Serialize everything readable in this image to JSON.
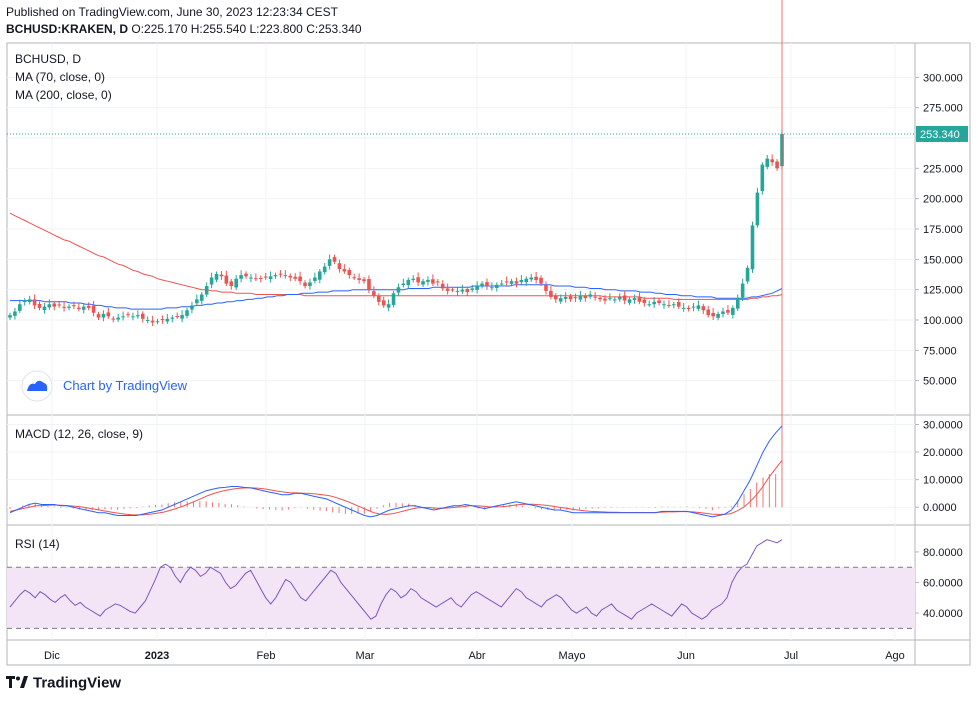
{
  "header": {
    "published": "Published on TradingView.com, June 30, 2023 12:23:34 CEST",
    "symbol": "BCHUSD:KRAKEN, D",
    "open": "O:225.170",
    "high": "H:255.540",
    "low": "L:223.800",
    "close": "C:253.340"
  },
  "panes": {
    "main": {
      "title": "BCHUSD, D",
      "legend": [
        "MA (70, close, 0)",
        "MA (200, close, 0)"
      ]
    },
    "macd": {
      "title": "MACD (12, 26, close, 9)"
    },
    "rsi": {
      "title": "RSI (14)"
    }
  },
  "watermark": "Chart by TradingView",
  "footer_logo": "TradingView",
  "colors": {
    "up": "#26a69a",
    "down": "#ef5350",
    "ma70": "#2962ff",
    "ma200": "#ef5350",
    "macd": "#2962ff",
    "signal": "#ef5350",
    "rsi": "#7e57c2",
    "rsi_band": "#f3e5f5",
    "price_tag": "#26a69a"
  },
  "chart_data": [
    {
      "type": "candlestick",
      "title": "BCHUSD, D",
      "ylim": [
        25,
        325
      ],
      "y_ticks": [
        "300.000",
        "275.000",
        "250.000",
        "225.000",
        "200.000",
        "175.000",
        "150.000",
        "125.000",
        "100.000",
        "75.000",
        "50.000"
      ],
      "x_ticks": [
        "Dic",
        "2023",
        "Feb",
        "Mar",
        "Abr",
        "Mayo",
        "Jun",
        "Jul",
        "Ago"
      ],
      "last_price_label": "253.340",
      "closes": [
        104,
        107,
        113,
        116,
        117,
        112,
        110,
        111,
        113,
        111,
        112,
        110,
        111,
        112,
        109,
        111,
        110,
        106,
        102,
        105,
        103,
        101,
        102,
        103,
        104,
        103,
        104,
        101,
        100,
        98,
        99,
        100,
        101,
        102,
        103,
        104,
        108,
        112,
        117,
        121,
        128,
        135,
        138,
        136,
        130,
        128,
        134,
        137,
        136,
        135,
        134,
        134,
        135,
        136,
        137,
        138,
        137,
        135,
        134,
        132,
        128,
        131,
        135,
        140,
        144,
        150,
        148,
        142,
        140,
        137,
        135,
        133,
        132,
        125,
        120,
        115,
        112,
        113,
        122,
        127,
        130,
        133,
        134,
        131,
        132,
        133,
        130,
        131,
        126,
        124,
        125,
        124,
        125,
        123,
        126,
        128,
        130,
        128,
        127,
        129,
        130,
        131,
        132,
        130,
        133,
        134,
        135,
        133,
        130,
        124,
        119,
        117,
        118,
        119,
        117,
        118,
        120,
        118,
        121,
        119,
        117,
        116,
        118,
        117,
        119,
        116,
        117,
        118,
        115,
        114,
        113,
        115,
        114,
        113,
        112,
        113,
        111,
        110,
        109,
        111,
        112,
        108,
        104,
        103,
        105,
        107,
        106,
        110,
        118,
        130,
        143,
        178,
        205,
        228,
        233,
        230,
        225,
        253.34
      ],
      "series": [
        {
          "name": "MA (70, close, 0)",
          "values": [
            116,
            116,
            116,
            116,
            116,
            116,
            116,
            115,
            115,
            115,
            115,
            115,
            114,
            114,
            114,
            113,
            113,
            112,
            112,
            111,
            111,
            110,
            110,
            110,
            109,
            109,
            109,
            109,
            109,
            109,
            109,
            110,
            110,
            110,
            111,
            111,
            111,
            112,
            112,
            113,
            113,
            114,
            114,
            115,
            115,
            116,
            116,
            117,
            117,
            118,
            118,
            119,
            119,
            120,
            120,
            121,
            121,
            121,
            122,
            122,
            122,
            123,
            123,
            123,
            124,
            124,
            124,
            124,
            125,
            125,
            125,
            125,
            125,
            125,
            125,
            125,
            125,
            125,
            125,
            126,
            126,
            126,
            126,
            126,
            127,
            127,
            127,
            127,
            127,
            127,
            127,
            127,
            128,
            128,
            128,
            128,
            128,
            128,
            128,
            128,
            129,
            129,
            129,
            129,
            129,
            129,
            129,
            129,
            128,
            128,
            128,
            128,
            127,
            127,
            127,
            126,
            126,
            126,
            125,
            125,
            125,
            124,
            124,
            124,
            124,
            123,
            123,
            123,
            122,
            122,
            121,
            121,
            121,
            120,
            120,
            120,
            119,
            119,
            119,
            119,
            118,
            118,
            118,
            118,
            118,
            118,
            118,
            119,
            119,
            120,
            121,
            122,
            124,
            126
          ]
        },
        {
          "name": "MA (200, close, 0)",
          "values": [
            188,
            186,
            184,
            182,
            180,
            178,
            176,
            174,
            172,
            170,
            168,
            166,
            165,
            163,
            161,
            159,
            157,
            155,
            153,
            152,
            150,
            148,
            146,
            145,
            143,
            141,
            140,
            138,
            137,
            136,
            134,
            133,
            132,
            131,
            130,
            129,
            128,
            127,
            126,
            125,
            125,
            124,
            124,
            123,
            123,
            123,
            122,
            122,
            122,
            122,
            121,
            121,
            121,
            121,
            121,
            121,
            121,
            121,
            121,
            121,
            120,
            120,
            120,
            120,
            120,
            120,
            120,
            120,
            120,
            120,
            120,
            120,
            120,
            120,
            120,
            120,
            120,
            120,
            120,
            120,
            120,
            120,
            120,
            120,
            120,
            120,
            120,
            120,
            120,
            120,
            120,
            120,
            120,
            120,
            120,
            120,
            120,
            120,
            120,
            120,
            120,
            120,
            120,
            120,
            120,
            120,
            120,
            120,
            120,
            120,
            120,
            120,
            120,
            120,
            120,
            120,
            120,
            120,
            120,
            120,
            120,
            119,
            119,
            119,
            119,
            119,
            119,
            119,
            119,
            118,
            118,
            118,
            118,
            118,
            118,
            117,
            117,
            117,
            117,
            117,
            117,
            117,
            117,
            117,
            117,
            117,
            117,
            117,
            117,
            117,
            117,
            118,
            118,
            119,
            119,
            120,
            120,
            121
          ]
        }
      ]
    },
    {
      "type": "line",
      "title": "MACD (12, 26, close, 9)",
      "ylim": [
        -5,
        32
      ],
      "y_ticks": [
        "30.0000",
        "20.0000",
        "10.0000",
        "0.0000"
      ],
      "series": [
        {
          "name": "MACD",
          "values": [
            -2,
            -1,
            0,
            1,
            1.5,
            1,
            1,
            1,
            0.5,
            0.5,
            0,
            -0.5,
            -1,
            -1.5,
            -2,
            -2,
            -2.5,
            -3,
            -3,
            -3,
            -3,
            -2.5,
            -2,
            -1.5,
            -1,
            0,
            1,
            2,
            3,
            4,
            5,
            6,
            6.5,
            7,
            7.2,
            7.5,
            7.5,
            7.2,
            7,
            6.5,
            6,
            5.5,
            5,
            4.5,
            4.5,
            5,
            5,
            4.5,
            4,
            3.5,
            3,
            2,
            1,
            0,
            -1,
            -2,
            -3,
            -3.5,
            -3,
            -2,
            -1,
            -0.5,
            0,
            0.5,
            0.5,
            0,
            -0.5,
            -1,
            -0.5,
            0,
            0.5,
            0.5,
            1,
            0.5,
            0,
            -0.5,
            0,
            0.5,
            1,
            1.5,
            2,
            1.5,
            1,
            0.5,
            0,
            -0.5,
            -1,
            -1,
            -1.5,
            -2,
            -2,
            -2,
            -2,
            -2,
            -2,
            -2,
            -2,
            -2,
            -2,
            -2,
            -2,
            -2,
            -2,
            -1.5,
            -1.5,
            -1.5,
            -1.5,
            -1.5,
            -2,
            -2.5,
            -3,
            -3.5,
            -3,
            -2.5,
            -1,
            2,
            6,
            10,
            15,
            20,
            24,
            27,
            29.5
          ]
        },
        {
          "name": "Signal",
          "values": [
            -1.5,
            -1,
            -0.5,
            0,
            0.5,
            0.6,
            0.7,
            0.8,
            0.7,
            0.6,
            0.4,
            0.2,
            -0.2,
            -0.6,
            -1,
            -1.4,
            -1.8,
            -2.2,
            -2.5,
            -2.7,
            -2.8,
            -2.7,
            -2.5,
            -2.2,
            -1.8,
            -1.2,
            -0.5,
            0.3,
            1.2,
            2.2,
            3.2,
            4.2,
            5,
            5.7,
            6.2,
            6.6,
            6.9,
            7,
            7,
            6.9,
            6.6,
            6.2,
            5.8,
            5.5,
            5.2,
            5.2,
            5.1,
            5,
            4.8,
            4.5,
            4.2,
            3.6,
            2.8,
            2,
            1,
            0,
            -1,
            -2,
            -2.5,
            -2.6,
            -2.3,
            -1.8,
            -1.2,
            -0.6,
            -0.2,
            -0.1,
            -0.2,
            -0.4,
            -0.4,
            -0.2,
            0,
            0.2,
            0.5,
            0.5,
            0.4,
            0.2,
            0.1,
            0.2,
            0.4,
            0.7,
            1,
            1.1,
            1.1,
            0.9,
            0.7,
            0.4,
            0,
            -0.3,
            -0.7,
            -1,
            -1.3,
            -1.5,
            -1.6,
            -1.7,
            -1.8,
            -1.8,
            -1.9,
            -1.9,
            -1.9,
            -1.9,
            -1.9,
            -1.9,
            -1.8,
            -1.7,
            -1.7,
            -1.6,
            -1.6,
            -1.7,
            -1.9,
            -2.2,
            -2.5,
            -2.6,
            -2.6,
            -2.3,
            -1.3,
            0,
            2,
            4.5,
            7.5,
            11,
            14,
            17
          ]
        }
      ]
    },
    {
      "type": "line",
      "title": "RSI (14)",
      "ylim": [
        25,
        95
      ],
      "y_ticks": [
        "80.0000",
        "60.0000",
        "40.0000"
      ],
      "bands": [
        70,
        30
      ],
      "series": [
        {
          "name": "RSI",
          "values": [
            44,
            48,
            52,
            55,
            53,
            50,
            54,
            52,
            49,
            47,
            50,
            52,
            48,
            45,
            47,
            44,
            42,
            40,
            38,
            42,
            44,
            46,
            45,
            43,
            41,
            40,
            44,
            48,
            55,
            62,
            70,
            72,
            70,
            64,
            60,
            66,
            70,
            68,
            64,
            66,
            70,
            68,
            66,
            60,
            56,
            58,
            62,
            66,
            68,
            62,
            56,
            50,
            46,
            50,
            56,
            62,
            60,
            55,
            50,
            48,
            52,
            56,
            60,
            64,
            68,
            66,
            60,
            56,
            52,
            48,
            44,
            40,
            36,
            38,
            46,
            52,
            56,
            54,
            50,
            52,
            56,
            54,
            50,
            48,
            46,
            44,
            46,
            48,
            50,
            46,
            44,
            48,
            52,
            54,
            52,
            50,
            48,
            46,
            44,
            48,
            52,
            56,
            54,
            50,
            48,
            46,
            44,
            48,
            50,
            52,
            50,
            46,
            42,
            40,
            42,
            44,
            40,
            38,
            42,
            44,
            46,
            42,
            40,
            38,
            36,
            40,
            42,
            44,
            46,
            44,
            42,
            40,
            38,
            42,
            46,
            44,
            40,
            38,
            36,
            38,
            42,
            44,
            46,
            50,
            60,
            66,
            70,
            72,
            78,
            84,
            86,
            88,
            87,
            86,
            88
          ]
        }
      ]
    }
  ]
}
